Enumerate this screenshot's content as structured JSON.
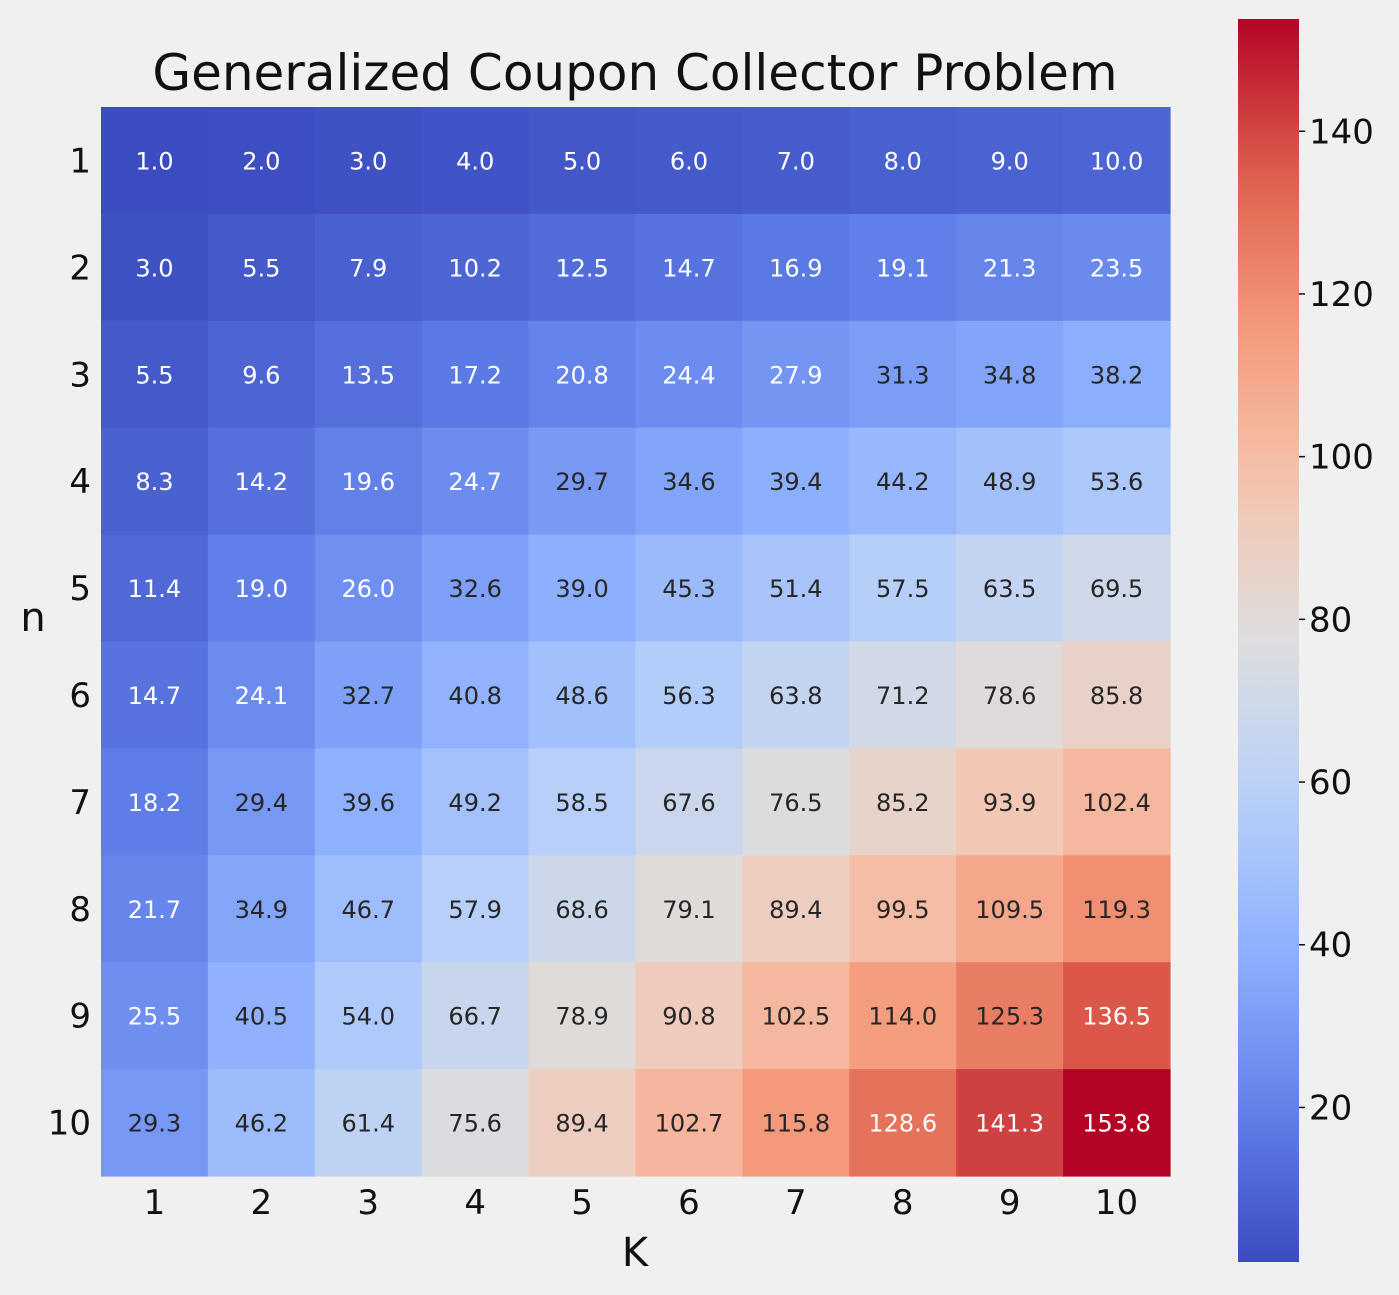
{
  "chart_data": {
    "type": "heatmap",
    "title": "Generalized Coupon Collector Problem",
    "xlabel": "K",
    "ylabel": "n",
    "x_categories": [
      "1",
      "2",
      "3",
      "4",
      "5",
      "6",
      "7",
      "8",
      "9",
      "10"
    ],
    "y_categories": [
      "1",
      "2",
      "3",
      "4",
      "5",
      "6",
      "7",
      "8",
      "9",
      "10"
    ],
    "values": [
      [
        1.0,
        2.0,
        3.0,
        4.0,
        5.0,
        6.0,
        7.0,
        8.0,
        9.0,
        10.0
      ],
      [
        3.0,
        5.5,
        7.9,
        10.2,
        12.5,
        14.7,
        16.9,
        19.1,
        21.3,
        23.5
      ],
      [
        5.5,
        9.6,
        13.5,
        17.2,
        20.8,
        24.4,
        27.9,
        31.3,
        34.8,
        38.2
      ],
      [
        8.3,
        14.2,
        19.6,
        24.7,
        29.7,
        34.6,
        39.4,
        44.2,
        48.9,
        53.6
      ],
      [
        11.4,
        19.0,
        26.0,
        32.6,
        39.0,
        45.3,
        51.4,
        57.5,
        63.5,
        69.5
      ],
      [
        14.7,
        24.1,
        32.7,
        40.8,
        48.6,
        56.3,
        63.8,
        71.2,
        78.6,
        85.8
      ],
      [
        18.2,
        29.4,
        39.6,
        49.2,
        58.5,
        67.6,
        76.5,
        85.2,
        93.9,
        102.4
      ],
      [
        21.7,
        34.9,
        46.7,
        57.9,
        68.6,
        79.1,
        89.4,
        99.5,
        109.5,
        119.3
      ],
      [
        25.5,
        40.5,
        54.0,
        66.7,
        78.9,
        90.8,
        102.5,
        114.0,
        125.3,
        136.5
      ],
      [
        29.3,
        46.2,
        61.4,
        75.6,
        89.4,
        102.7,
        115.8,
        128.6,
        141.3,
        153.8
      ]
    ],
    "colormap": "coolwarm",
    "color_range": [
      1.0,
      153.8
    ],
    "colorbar_ticks": [
      "20",
      "40",
      "60",
      "80",
      "100",
      "120",
      "140"
    ],
    "grid": false,
    "annotations_shown": true
  }
}
